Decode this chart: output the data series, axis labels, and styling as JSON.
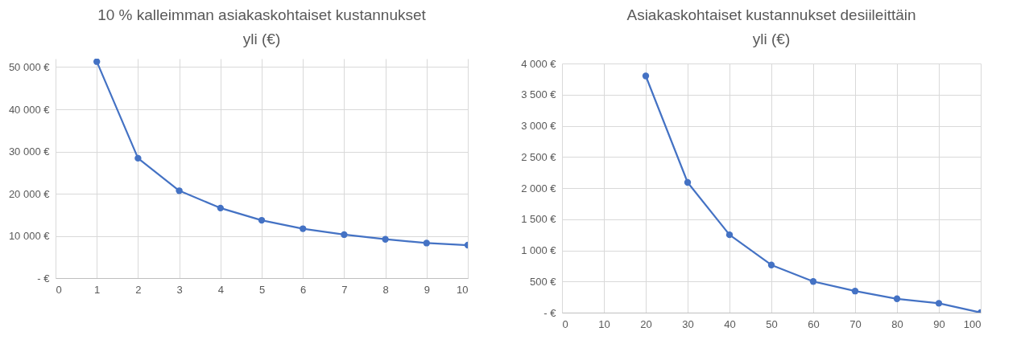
{
  "chart_data": [
    {
      "type": "line",
      "title": "10 % kalleimman asiakaskohtaiset kustannukset yli (€)",
      "x": [
        1,
        2,
        3,
        4,
        5,
        6,
        7,
        8,
        9,
        10
      ],
      "series": [
        {
          "color": "#4472c4",
          "values": [
            51300,
            28400,
            20700,
            16600,
            13700,
            11700,
            10300,
            9200,
            8300,
            7800
          ]
        }
      ],
      "xlim": [
        0,
        10
      ],
      "xticks": [
        0,
        1,
        2,
        3,
        4,
        5,
        6,
        7,
        8,
        9,
        10
      ],
      "ylim": [
        0,
        52000
      ],
      "yticks": [
        {
          "value": 0,
          "label": "-  €"
        },
        {
          "value": 10000,
          "label": "10 000 €"
        },
        {
          "value": 20000,
          "label": "20 000 €"
        },
        {
          "value": 30000,
          "label": "30 000 €"
        },
        {
          "value": 40000,
          "label": "40 000 €"
        },
        {
          "value": 50000,
          "label": "50 000 €"
        }
      ],
      "grid": true,
      "marker": "circle"
    },
    {
      "type": "line",
      "title": "Asiakaskohtaiset kustannukset desiileittäin yli (€)",
      "x": [
        20,
        30,
        40,
        50,
        60,
        70,
        80,
        90,
        100
      ],
      "series": [
        {
          "color": "#4472c4",
          "values": [
            3800,
            2090,
            1250,
            765,
            500,
            346,
            222,
            150,
            0
          ]
        }
      ],
      "xlim": [
        0,
        100
      ],
      "xticks": [
        0,
        10,
        20,
        30,
        40,
        50,
        60,
        70,
        80,
        90,
        100
      ],
      "ylim": [
        0,
        4000
      ],
      "yticks": [
        {
          "value": 0,
          "label": "-  €"
        },
        {
          "value": 500,
          "label": "500 €"
        },
        {
          "value": 1000,
          "label": "1 000 €"
        },
        {
          "value": 1500,
          "label": "1 500 €"
        },
        {
          "value": 2000,
          "label": "2 000 €"
        },
        {
          "value": 2500,
          "label": "2 500 €"
        },
        {
          "value": 3000,
          "label": "3 000 €"
        },
        {
          "value": 3500,
          "label": "3 500 €"
        },
        {
          "value": 4000,
          "label": "4 000 €"
        }
      ],
      "grid": true,
      "marker": "circle"
    }
  ]
}
